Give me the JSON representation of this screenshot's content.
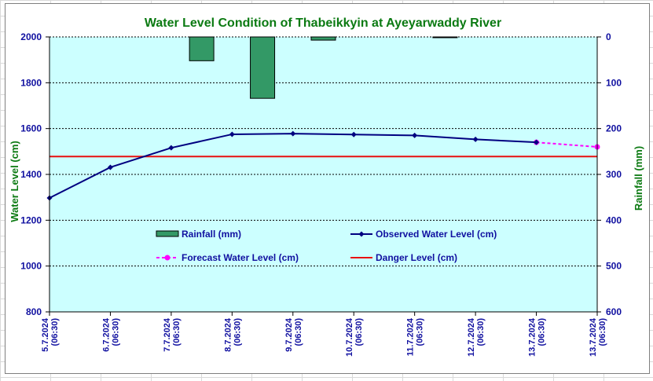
{
  "chart_data": {
    "type": "bar+line",
    "title": "Water Level Condition of Thabeikkyin at Ayeyarwaddy River",
    "ylabel": "Water Level (cm)",
    "y2label": "Rainfall (mm)",
    "ylim": [
      800,
      2000
    ],
    "y2lim": [
      0,
      600
    ],
    "y2_inverted": true,
    "yticks": [
      "2000",
      "1800",
      "1600",
      "1400",
      "1200",
      "1000",
      "800"
    ],
    "y2ticks": [
      "0",
      "100",
      "200",
      "300",
      "400",
      "500",
      "600"
    ],
    "grid": true,
    "legend_placement": "center",
    "categories": [
      [
        "5.7.2024",
        "(06:30)"
      ],
      [
        "6.7.2024",
        "(06:30)"
      ],
      [
        "7.7.2024",
        "(06:30)"
      ],
      [
        "8.7.2024",
        "(06:30)"
      ],
      [
        "9.7.2024",
        "(06:30)"
      ],
      [
        "10.7.2024",
        "(06:30)"
      ],
      [
        "11.7.2024",
        "(06:30)"
      ],
      [
        "12.7.2024",
        "(06:30)"
      ],
      [
        "13.7.2024",
        "(06:30)"
      ],
      [
        "13.7.2024",
        "(06:30)"
      ]
    ],
    "series": [
      {
        "name": "Rainfall (mm)",
        "type": "bar",
        "axis": "right",
        "color": "#339966",
        "values": [
          0,
          0,
          52,
          134,
          7,
          0,
          1,
          0,
          0,
          null
        ]
      },
      {
        "name": "Observed Water Level (cm)",
        "type": "line",
        "axis": "left",
        "color": "#000080",
        "values": [
          1297,
          1431,
          1516,
          1575,
          1578,
          1574,
          1570,
          1553,
          1540,
          null
        ]
      },
      {
        "name": "Forecast Water Level (cm)",
        "type": "line",
        "dashed": true,
        "axis": "left",
        "color": "#ff00ff",
        "values": [
          null,
          null,
          null,
          null,
          null,
          null,
          null,
          null,
          1540,
          1520
        ]
      },
      {
        "name": "Danger Level (cm)",
        "type": "line",
        "axis": "left",
        "color": "#e81010",
        "values": [
          1478,
          1478,
          1478,
          1478,
          1478,
          1478,
          1478,
          1478,
          1478,
          1478
        ]
      }
    ],
    "plot_background": "#ccffff"
  }
}
